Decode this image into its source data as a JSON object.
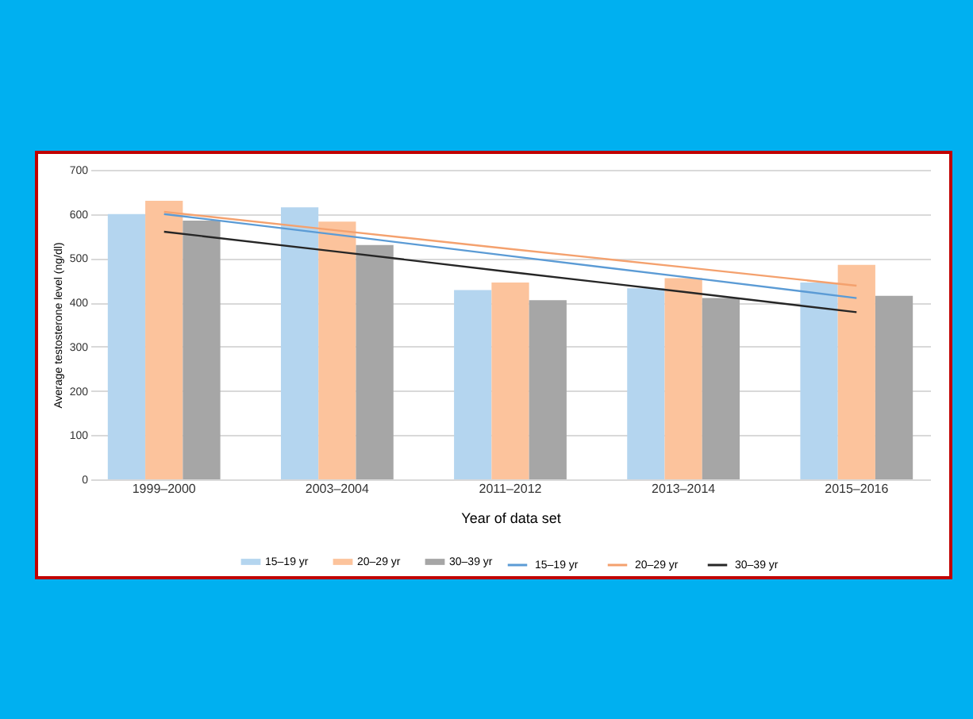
{
  "chart_data": {
    "type": "bar",
    "xlabel": "Year of data set",
    "ylabel": "Average testosterone level (ng/dl)",
    "categories": [
      "1999–2000",
      "2003–2004",
      "2011–2012",
      "2013–2014",
      "2015–2016"
    ],
    "series": [
      {
        "name": "15–19 yr",
        "color": "#b4d5ef",
        "values": [
          600,
          615,
          428,
          432,
          445
        ]
      },
      {
        "name": "20–29 yr",
        "color": "#fcc39c",
        "values": [
          630,
          583,
          445,
          455,
          485
        ]
      },
      {
        "name": "30–39 yr",
        "color": "#a6a6a6",
        "values": [
          585,
          530,
          405,
          410,
          415
        ]
      },
      {
        "name": "15–19 yr",
        "type": "line",
        "color": "#5b9bd5",
        "values": [
          600,
          553,
          505,
          458,
          410
        ]
      },
      {
        "name": "20–29 yr",
        "type": "line",
        "color": "#f4a16e",
        "values": [
          605,
          563,
          521,
          480,
          438
        ]
      },
      {
        "name": "30–39 yr",
        "type": "line",
        "color": "#262626",
        "values": [
          560,
          515,
          469,
          424,
          378
        ]
      }
    ],
    "ylim": [
      0,
      700
    ],
    "yticks": [
      0,
      100,
      200,
      300,
      400,
      500,
      600,
      700
    ],
    "grid": "y",
    "legend": "bottom"
  }
}
